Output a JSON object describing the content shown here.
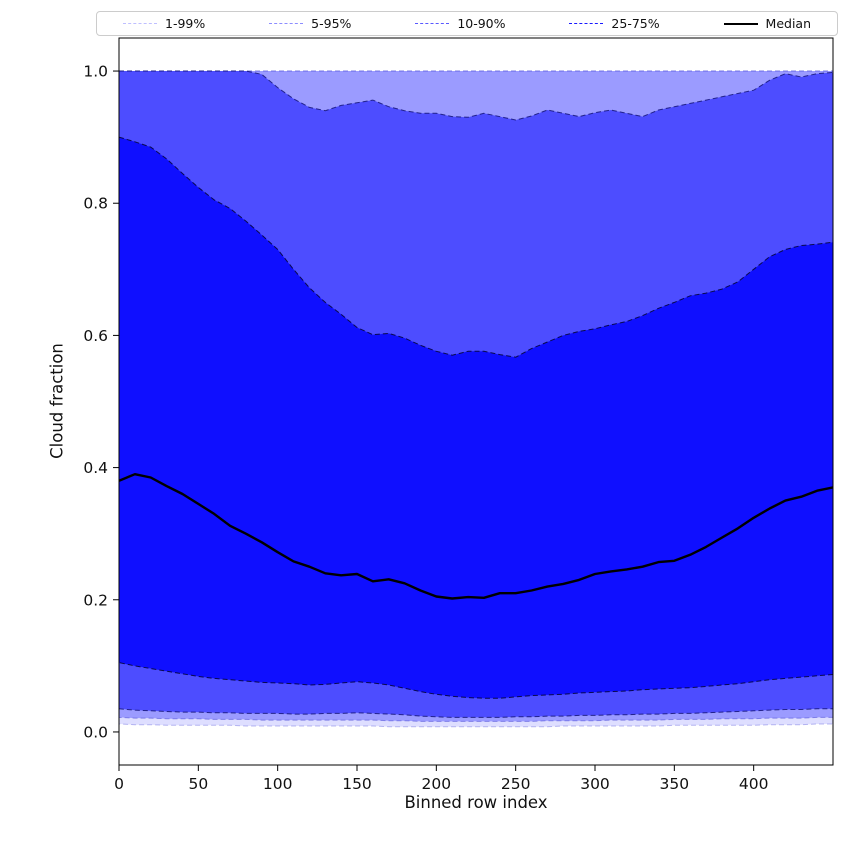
{
  "figure": {
    "background": "#ffffff",
    "accent_blue": "#0000ff"
  },
  "chart_data": {
    "type": "area",
    "title": "",
    "xlabel": "Binned row index",
    "ylabel": "Cloud fraction",
    "xlim": [
      0,
      450
    ],
    "ylim": [
      -0.05,
      1.05
    ],
    "grid": false,
    "xticks": {
      "values": [
        0,
        50,
        100,
        150,
        200,
        250,
        300,
        350,
        400
      ],
      "labels": [
        "0",
        "50",
        "100",
        "150",
        "200",
        "250",
        "300",
        "350",
        "400"
      ]
    },
    "yticks": {
      "values": [
        0.0,
        0.2,
        0.4,
        0.6,
        0.8,
        1.0
      ],
      "labels": [
        "0.0",
        "0.2",
        "0.4",
        "0.6",
        "0.8",
        "1.0"
      ]
    },
    "x": [
      0,
      10,
      20,
      30,
      40,
      50,
      60,
      70,
      80,
      90,
      100,
      110,
      120,
      130,
      140,
      150,
      160,
      170,
      180,
      190,
      200,
      210,
      220,
      230,
      240,
      250,
      260,
      270,
      280,
      290,
      300,
      310,
      320,
      330,
      340,
      350,
      360,
      370,
      380,
      390,
      400,
      410,
      420,
      430,
      440,
      450
    ],
    "bands": [
      {
        "name": "1-99%",
        "lower": [
          0.012,
          0.011,
          0.011,
          0.01,
          0.01,
          0.01,
          0.01,
          0.01,
          0.009,
          0.009,
          0.009,
          0.009,
          0.009,
          0.009,
          0.009,
          0.009,
          0.009,
          0.008,
          0.008,
          0.008,
          0.008,
          0.008,
          0.008,
          0.008,
          0.008,
          0.008,
          0.008,
          0.008,
          0.009,
          0.009,
          0.009,
          0.009,
          0.009,
          0.009,
          0.009,
          0.01,
          0.01,
          0.01,
          0.01,
          0.01,
          0.01,
          0.011,
          0.011,
          0.011,
          0.012,
          0.012
        ],
        "upper": [
          1.0,
          1.0,
          1.0,
          1.0,
          1.0,
          1.0,
          1.0,
          1.0,
          1.0,
          1.0,
          1.0,
          1.0,
          1.0,
          1.0,
          1.0,
          1.0,
          1.0,
          1.0,
          1.0,
          1.0,
          1.0,
          1.0,
          1.0,
          1.0,
          1.0,
          1.0,
          1.0,
          1.0,
          1.0,
          1.0,
          1.0,
          1.0,
          1.0,
          1.0,
          1.0,
          1.0,
          1.0,
          1.0,
          1.0,
          1.0,
          1.0,
          1.0,
          1.0,
          1.0,
          1.0,
          1.0
        ],
        "fill": "rgba(0,0,255,0.13)",
        "edge": "rgba(130,130,230,0.55)"
      },
      {
        "name": "5-95%",
        "lower": [
          0.022,
          0.021,
          0.021,
          0.02,
          0.02,
          0.02,
          0.019,
          0.019,
          0.019,
          0.018,
          0.018,
          0.018,
          0.018,
          0.018,
          0.018,
          0.018,
          0.018,
          0.017,
          0.017,
          0.016,
          0.016,
          0.016,
          0.016,
          0.016,
          0.016,
          0.016,
          0.016,
          0.017,
          0.017,
          0.017,
          0.017,
          0.018,
          0.018,
          0.018,
          0.018,
          0.019,
          0.019,
          0.019,
          0.02,
          0.02,
          0.02,
          0.021,
          0.021,
          0.021,
          0.022,
          0.022
        ],
        "upper": [
          1.0,
          1.0,
          1.0,
          1.0,
          1.0,
          1.0,
          1.0,
          1.0,
          1.0,
          1.0,
          1.0,
          1.0,
          1.0,
          1.0,
          1.0,
          1.0,
          1.0,
          1.0,
          1.0,
          1.0,
          1.0,
          1.0,
          1.0,
          1.0,
          1.0,
          1.0,
          1.0,
          1.0,
          1.0,
          1.0,
          1.0,
          1.0,
          1.0,
          1.0,
          1.0,
          1.0,
          1.0,
          1.0,
          1.0,
          1.0,
          1.0,
          1.0,
          1.0,
          1.0,
          1.0,
          1.0
        ],
        "fill": "rgba(0,0,255,0.30)",
        "edge": "rgba(90,90,220,0.65)"
      },
      {
        "name": "10-90%",
        "lower": [
          0.035,
          0.033,
          0.032,
          0.031,
          0.03,
          0.03,
          0.029,
          0.029,
          0.028,
          0.028,
          0.028,
          0.027,
          0.027,
          0.028,
          0.028,
          0.029,
          0.028,
          0.027,
          0.026,
          0.024,
          0.023,
          0.022,
          0.022,
          0.022,
          0.022,
          0.023,
          0.023,
          0.024,
          0.024,
          0.025,
          0.025,
          0.026,
          0.026,
          0.027,
          0.027,
          0.028,
          0.028,
          0.029,
          0.03,
          0.031,
          0.032,
          0.033,
          0.034,
          0.034,
          0.035,
          0.035
        ],
        "upper": [
          1.0,
          1.0,
          1.0,
          1.0,
          1.0,
          1.0,
          1.0,
          1.0,
          1.0,
          0.995,
          0.975,
          0.958,
          0.945,
          0.94,
          0.948,
          0.952,
          0.956,
          0.946,
          0.94,
          0.936,
          0.936,
          0.931,
          0.93,
          0.936,
          0.931,
          0.926,
          0.932,
          0.941,
          0.936,
          0.931,
          0.937,
          0.941,
          0.936,
          0.931,
          0.941,
          0.946,
          0.951,
          0.956,
          0.961,
          0.966,
          0.971,
          0.986,
          0.996,
          0.991,
          0.996,
          0.998
        ],
        "fill": "rgba(0,0,255,0.50)",
        "edge": "rgba(20,20,120,0.85)"
      },
      {
        "name": "25-75%",
        "lower": [
          0.105,
          0.1,
          0.096,
          0.092,
          0.088,
          0.084,
          0.081,
          0.079,
          0.077,
          0.075,
          0.074,
          0.073,
          0.071,
          0.072,
          0.074,
          0.076,
          0.074,
          0.071,
          0.066,
          0.061,
          0.057,
          0.054,
          0.052,
          0.051,
          0.051,
          0.053,
          0.055,
          0.056,
          0.057,
          0.059,
          0.06,
          0.061,
          0.062,
          0.064,
          0.065,
          0.066,
          0.067,
          0.069,
          0.071,
          0.073,
          0.076,
          0.079,
          0.081,
          0.083,
          0.085,
          0.087
        ],
        "upper": [
          0.9,
          0.893,
          0.885,
          0.867,
          0.845,
          0.824,
          0.805,
          0.792,
          0.773,
          0.752,
          0.73,
          0.7,
          0.672,
          0.65,
          0.632,
          0.612,
          0.601,
          0.603,
          0.596,
          0.585,
          0.576,
          0.57,
          0.576,
          0.576,
          0.571,
          0.567,
          0.58,
          0.59,
          0.6,
          0.606,
          0.61,
          0.616,
          0.621,
          0.63,
          0.641,
          0.65,
          0.66,
          0.664,
          0.67,
          0.681,
          0.7,
          0.719,
          0.73,
          0.736,
          0.738,
          0.741
        ],
        "fill": "rgba(0,0,255,0.80)",
        "edge": "rgba(5,5,60,0.9)"
      }
    ],
    "median": {
      "name": "Median",
      "color": "#000000",
      "width": 2.4,
      "values": [
        0.38,
        0.39,
        0.385,
        0.372,
        0.36,
        0.345,
        0.33,
        0.312,
        0.3,
        0.287,
        0.272,
        0.258,
        0.25,
        0.24,
        0.237,
        0.239,
        0.228,
        0.231,
        0.225,
        0.214,
        0.205,
        0.202,
        0.204,
        0.203,
        0.21,
        0.21,
        0.214,
        0.22,
        0.224,
        0.23,
        0.239,
        0.243,
        0.246,
        0.25,
        0.257,
        0.259,
        0.268,
        0.28,
        0.294,
        0.308,
        0.324,
        0.338,
        0.35,
        0.356,
        0.365,
        0.37
      ]
    },
    "legend": {
      "position": "top",
      "entries": [
        {
          "label": "1-99%",
          "color": "rgba(0,0,255,0.25)",
          "style": "dashed",
          "weight": 1.5
        },
        {
          "label": "5-95%",
          "color": "rgba(0,0,255,0.45)",
          "style": "dashed",
          "weight": 1.5
        },
        {
          "label": "10-90%",
          "color": "rgba(0,0,255,0.65)",
          "style": "dashed",
          "weight": 1.5
        },
        {
          "label": "25-75%",
          "color": "rgba(0,0,255,0.90)",
          "style": "dashed",
          "weight": 1.5
        },
        {
          "label": "Median",
          "color": "#000000",
          "style": "solid",
          "weight": 2.6
        }
      ]
    }
  }
}
